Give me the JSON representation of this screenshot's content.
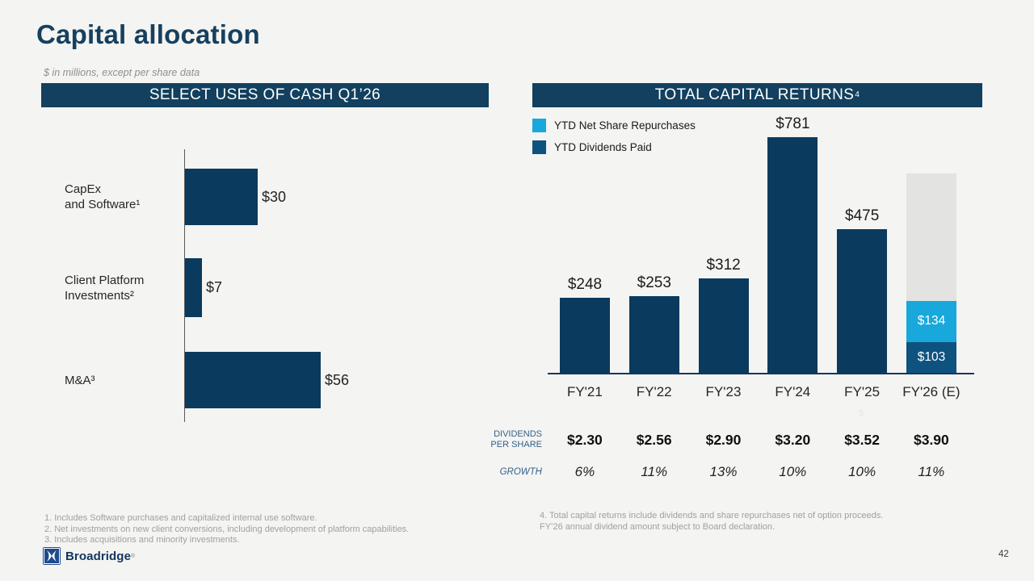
{
  "slide": {
    "title": "Capital allocation",
    "subtitle": "$ in millions, except per share data",
    "page_number": "42"
  },
  "left_panel": {
    "header": "SELECT USES OF CASH Q1’26"
  },
  "right_panel": {
    "header": "TOTAL CAPITAL RETURNS",
    "header_superscript": "4",
    "legend": [
      {
        "label": "YTD Net Share Repurchases",
        "color": "#18a8db"
      },
      {
        "label": "YTD Dividends Paid",
        "color": "#0e5380"
      }
    ],
    "faint_footnote_mark": "5",
    "table": {
      "rows": [
        {
          "label": "DIVIDENDS\nPER SHARE",
          "values": [
            "$2.30",
            "$2.56",
            "$2.90",
            "$3.20",
            "$3.52",
            "$3.90"
          ]
        },
        {
          "label": "GROWTH",
          "values": [
            "6%",
            "11%",
            "13%",
            "10%",
            "10%",
            "11%"
          ]
        }
      ]
    }
  },
  "chart_data": [
    {
      "id": "select_uses_of_cash",
      "type": "bar",
      "orientation": "horizontal",
      "title": "SELECT USES OF CASH Q1’26",
      "categories": [
        "CapEx\nand Software¹",
        "Client Platform\nInvestments²",
        "M&A³"
      ],
      "values": [
        30,
        7,
        56
      ],
      "value_labels": [
        "$30",
        "$7",
        "$56"
      ],
      "xlim": [
        0,
        60
      ],
      "bar_color": "#0a3a5e",
      "grid": false
    },
    {
      "id": "total_capital_returns",
      "type": "bar",
      "stacked": true,
      "title": "TOTAL CAPITAL RETURNS",
      "categories": [
        "FY'21",
        "FY'22",
        "FY'23",
        "FY'24",
        "FY'25",
        "FY'26 (E)"
      ],
      "ylim": [
        0,
        781
      ],
      "legend_position": "top-left",
      "grid": false,
      "bars": [
        {
          "category": "FY'21",
          "total_label": "$248",
          "segments": [
            {
              "value": 248,
              "color": "#0a3a5e",
              "series": "Total capital returns"
            }
          ]
        },
        {
          "category": "FY'22",
          "total_label": "$253",
          "segments": [
            {
              "value": 253,
              "color": "#0a3a5e",
              "series": "Total capital returns"
            }
          ]
        },
        {
          "category": "FY'23",
          "total_label": "$312",
          "segments": [
            {
              "value": 312,
              "color": "#0a3a5e",
              "series": "Total capital returns"
            }
          ]
        },
        {
          "category": "FY'24",
          "total_label": "$781",
          "segments": [
            {
              "value": 781,
              "color": "#0a3a5e",
              "series": "Total capital returns"
            }
          ]
        },
        {
          "category": "FY'25",
          "total_label": "$475",
          "segments": [
            {
              "value": 475,
              "color": "#0a3a5e",
              "series": "Total capital returns"
            }
          ]
        },
        {
          "category": "FY'26 (E)",
          "segments": [
            {
              "value": 103,
              "color": "#0e5380",
              "label": "$103",
              "series": "YTD Dividends Paid"
            },
            {
              "value": 134,
              "color": "#18a8db",
              "label": "$134",
              "series": "YTD Net Share Repurchases"
            },
            {
              "value": 423,
              "color": "#e3e3e1",
              "series": "full-year estimate placeholder"
            }
          ]
        }
      ]
    }
  ],
  "footnotes": {
    "left": [
      "1. Includes Software purchases and capitalized internal use software.",
      "2. Net investments on new client conversions, including development of platform capabilities.",
      "3. Includes acquisitions and minority investments."
    ],
    "right": [
      "4. Total capital returns include dividends and share repurchases net of option proceeds.",
      "FY’26 annual dividend amount subject to Board declaration."
    ]
  },
  "logo": {
    "text": "Broadridge",
    "mark": "®"
  },
  "colors": {
    "background": "#f4f4f2",
    "header_bg": "#12405e",
    "accent_navy": "#0a3a5e",
    "accent_cyan": "#18a8db",
    "dividends_blue": "#0e5380",
    "placeholder_gray": "#e3e3e1",
    "title_navy": "#16405f"
  }
}
